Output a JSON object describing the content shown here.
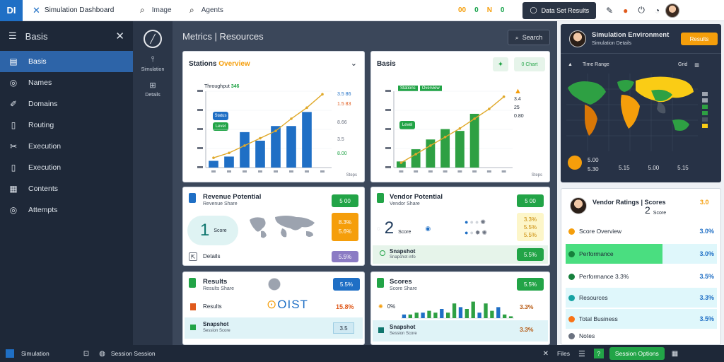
{
  "topbar": {
    "logo": "DI",
    "app_title": "Simulation Dashboard",
    "search_label": "Image",
    "query_label": "Agents",
    "status": [
      "00",
      "0",
      "N",
      "0"
    ],
    "dark_button": "Data Set Results"
  },
  "sidebar": {
    "title": "Basis",
    "items": [
      {
        "label": "Basis",
        "icon": "list-icon"
      },
      {
        "label": "Names",
        "icon": "target-icon"
      },
      {
        "label": "Domains",
        "icon": "pen-icon"
      },
      {
        "label": "Routing",
        "icon": "doc-icon"
      },
      {
        "label": "Execution",
        "icon": "tools-icon"
      },
      {
        "label": "Execution",
        "icon": "doc-icon"
      },
      {
        "label": "Contents",
        "icon": "grid-icon"
      },
      {
        "label": "Attempts",
        "icon": "target-icon"
      }
    ]
  },
  "rail": {
    "item1": "Simulation",
    "item2": "Details"
  },
  "main": {
    "title": "Metrics | Resources",
    "search_button": "Search",
    "chart1": {
      "title_a": "Stations",
      "title_b": "Overview",
      "legend_text": "Throughput",
      "legend_tag": "346",
      "labels_right": [
        "3.5 86",
        "1.5 83",
        "8.66",
        "3.5",
        "8.00"
      ],
      "badges": [
        "Status",
        "Level"
      ],
      "x_note": "Steps"
    },
    "chart2": {
      "title": "Basis",
      "pill": "0 Chart",
      "legend_tags": [
        "Stations",
        "Overview"
      ],
      "side": [
        "3.4",
        "25",
        "0.80"
      ],
      "badge": "Level",
      "x_note": "Steps"
    },
    "card3": {
      "title": "Revenue Potential",
      "sub": "Revenue Share",
      "badge": "5 00",
      "big": "1",
      "big_sub": "Score",
      "orange": [
        "8.3%",
        "5.6%"
      ],
      "footer": "Details",
      "purple": "5.5%"
    },
    "card4": {
      "title": "Vendor Potential",
      "sub": "Vendor Share",
      "badge": "5 00",
      "big": "2",
      "big_sub": "Score",
      "yellow": [
        "3.3%",
        "5.5%",
        "5.5%"
      ],
      "strip_title": "Snapshot",
      "strip_sub": "Snapshot info",
      "strip_badge": "5.5%"
    },
    "card5": {
      "title": "Results",
      "sub": "Results Share",
      "badge": "5.5%",
      "logo_text": "OIST",
      "row2_label": "Results",
      "row2_value": "15.8%",
      "row3_label": "Snapshot",
      "row3_sub": "Session Score",
      "row3_value": "3.5"
    },
    "card6": {
      "title": "Scores",
      "sub": "Score Share",
      "badge": "5.5%",
      "pct": "0%",
      "v1": "3.3%",
      "row3_label": "Snapshot",
      "row3_sub": "Session Score",
      "v2": "3.3%"
    }
  },
  "right": {
    "geo_title": "Simulation Environment",
    "geo_sub": "Simulation Details",
    "geo_button": "Results",
    "geo_bar_left": "Time Range",
    "geo_bar_right": "Grid",
    "geo_stats": [
      "5.00",
      "5.30",
      "5.15",
      "5.00",
      "5.15"
    ],
    "rank_title": "Vendor Ratings | Scores",
    "rank_big": "2",
    "rank_big_sub": "Score",
    "rank_top_value": "3.0",
    "rows": [
      {
        "label": "Score Overview",
        "value": "3.0%",
        "color": "#f59e0b"
      },
      {
        "label": "Performance",
        "value": "3.0%",
        "color": "#22a447"
      },
      {
        "label": "Performance 3.3%",
        "value": "3.5%",
        "color": "#f59e0b"
      },
      {
        "label": "Resources",
        "value": "3.3%",
        "color": "#16a3a3"
      },
      {
        "label": "Total Business",
        "value": "3.5%",
        "color": "#f97316"
      },
      {
        "label": "Notes",
        "value": "",
        "color": "#6b7280"
      }
    ]
  },
  "bottombar": {
    "left_label": "Simulation",
    "mid_label": "Session Session",
    "right_a": "Files",
    "right_btn": "Session Options"
  },
  "chart_data": [
    {
      "type": "bar",
      "categories": [
        "1",
        "2",
        "3",
        "4",
        "5",
        "6",
        "7",
        "8"
      ],
      "series": [
        {
          "values": [
            1.1,
            1.8,
            5.8,
            4.4,
            6.8,
            6.8,
            9.1,
            0
          ]
        }
      ],
      "trend": [
        1.6,
        2.4,
        3.6,
        4.8,
        6.0,
        8.0,
        9.8,
        12.0
      ],
      "ylim": [
        0,
        12.5
      ]
    },
    {
      "type": "bar",
      "categories": [
        "1",
        "2",
        "3",
        "4",
        "5",
        "6",
        "7",
        "8"
      ],
      "series": [
        {
          "values": [
            1.0,
            3.0,
            4.6,
            6.3,
            6.0,
            8.8,
            0,
            0
          ]
        }
      ],
      "trend": [
        0.8,
        2.2,
        3.6,
        5.0,
        6.4,
        8.0,
        9.6,
        11.6
      ],
      "ylim": [
        0,
        12.5
      ]
    },
    {
      "type": "bar",
      "categories": [
        "1",
        "2",
        "3",
        "4",
        "5",
        "6",
        "7",
        "8",
        "9",
        "10",
        "11",
        "12",
        "13",
        "14",
        "15",
        "16",
        "17",
        "18"
      ],
      "series": [
        {
          "values": [
            2,
            2,
            3,
            3,
            4,
            3,
            5,
            3,
            8,
            6,
            5,
            9,
            3,
            8,
            4,
            6,
            2,
            1
          ]
        }
      ],
      "ylim": [
        0,
        10
      ]
    }
  ]
}
